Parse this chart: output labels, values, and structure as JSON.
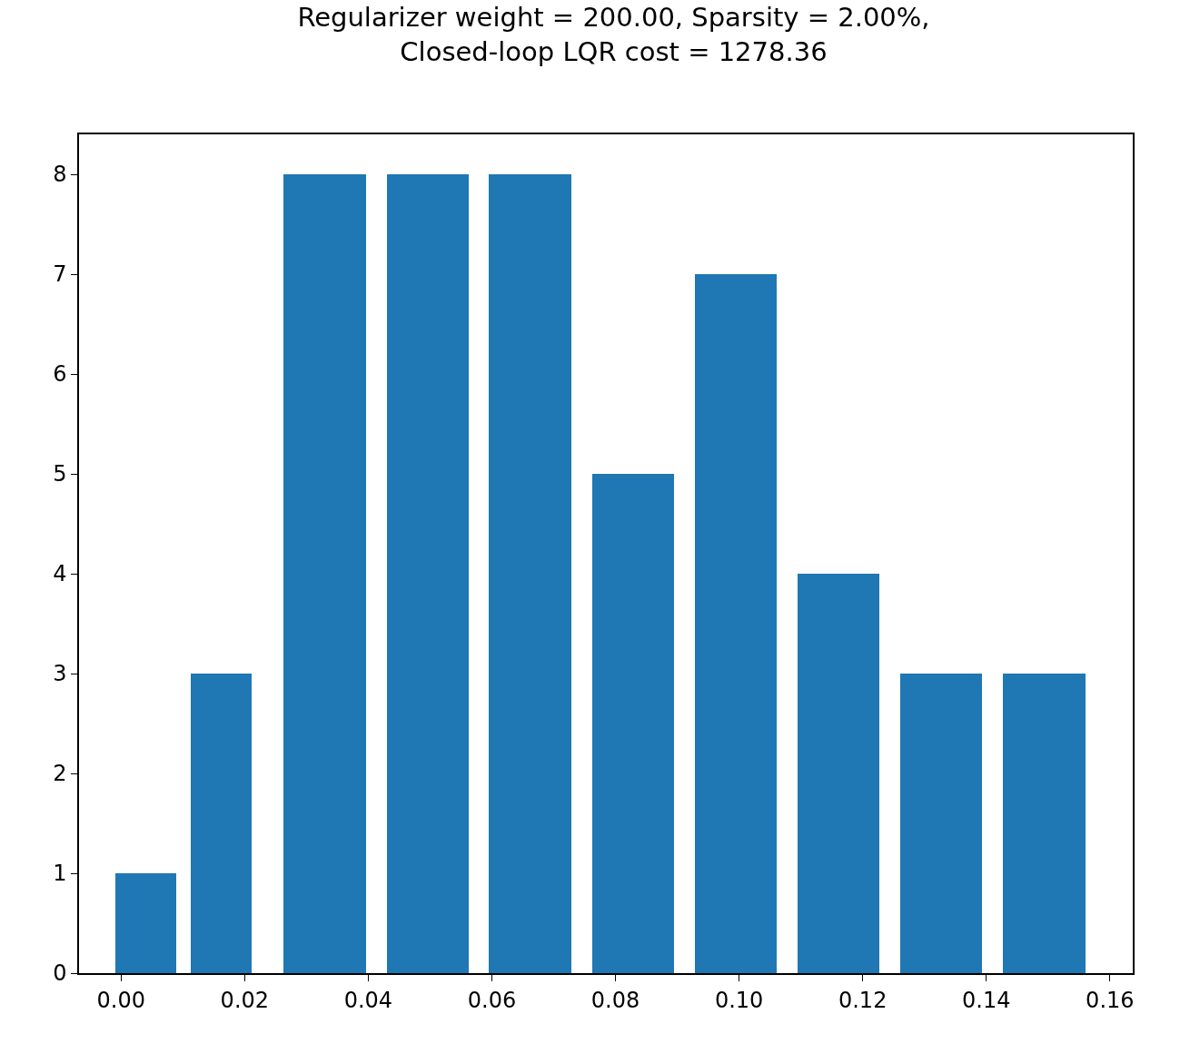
{
  "chart_data": {
    "type": "bar",
    "title": "Regularizer weight = 200.00, Sparsity = 2.00%,\nClosed-loop LQR cost = 1278.36",
    "x": [
      0.004,
      0.0162,
      0.0329,
      0.0496,
      0.0662,
      0.0829,
      0.0995,
      0.1161,
      0.1327,
      0.1494
    ],
    "values": [
      1,
      3,
      8,
      8,
      8,
      5,
      7,
      4,
      3,
      3
    ],
    "color": "#1f77b4",
    "xlim": [
      -0.0068,
      0.1637
    ],
    "xticks": [
      {
        "value": 0,
        "label": "0.00"
      },
      {
        "value": 0.02,
        "label": "0.02"
      },
      {
        "value": 0.04,
        "label": "0.04"
      },
      {
        "value": 0.06,
        "label": "0.06"
      },
      {
        "value": 0.08,
        "label": "0.08"
      },
      {
        "value": 0.1,
        "label": "0.10"
      },
      {
        "value": 0.12,
        "label": "0.12"
      },
      {
        "value": 0.14,
        "label": "0.14"
      },
      {
        "value": 0.16,
        "label": "0.16"
      }
    ],
    "ylim": [
      0,
      8.4
    ],
    "yticks": [
      0,
      1,
      2,
      3,
      4,
      5,
      6,
      7,
      8
    ]
  }
}
